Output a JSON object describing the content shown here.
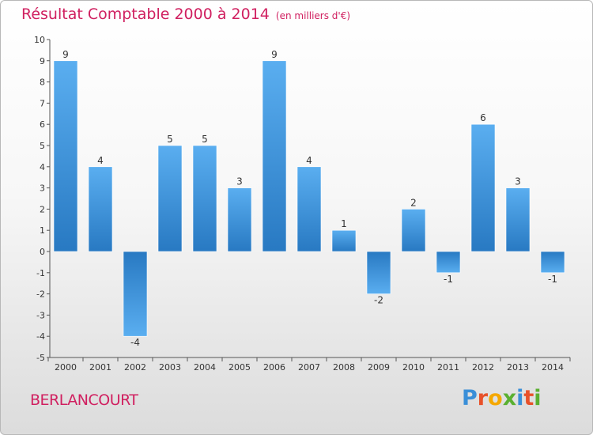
{
  "title": "Résultat Comptable 2000 à 2014",
  "unit": "(en milliers d'€)",
  "commune": "BERLANCOURT",
  "logo": {
    "letters": [
      "P",
      "r",
      "o",
      "x",
      "i",
      "t",
      "i"
    ],
    "colors": [
      "#3a8fd8",
      "#e8512a",
      "#f5a800",
      "#5ab031",
      "#3a8fd8",
      "#e8512a",
      "#5ab031"
    ]
  },
  "colors": {
    "bar_top": "#5aaef0",
    "bar_bottom": "#2879c2",
    "title": "#d02060"
  },
  "chart_data": {
    "type": "bar",
    "title": "Résultat Comptable 2000 à 2014",
    "ylabel": "",
    "xlabel": "",
    "categories": [
      "2000",
      "2001",
      "2002",
      "2003",
      "2004",
      "2005",
      "2006",
      "2007",
      "2008",
      "2009",
      "2010",
      "2011",
      "2012",
      "2013",
      "2014"
    ],
    "values": [
      9,
      4,
      -4,
      5,
      5,
      3,
      9,
      4,
      1,
      -2,
      2,
      -1,
      6,
      3,
      -1
    ],
    "data_labels": [
      "9",
      "4",
      "-4",
      "5",
      "5",
      "3",
      "9",
      "4",
      "1",
      "-2",
      "2",
      "-1",
      "6",
      "3",
      "-1"
    ],
    "ylim": [
      -5,
      10
    ],
    "yticks": [
      -5,
      -4,
      -3,
      -2,
      -1,
      0,
      1,
      2,
      3,
      4,
      5,
      6,
      7,
      8,
      9,
      10
    ],
    "ytick_labels": [
      "-5",
      "-4",
      "-3",
      "-2",
      "-1",
      "0",
      "1",
      "2",
      "3",
      "4",
      "5",
      "6",
      "7",
      "8",
      "9",
      "10"
    ],
    "grid": false
  }
}
